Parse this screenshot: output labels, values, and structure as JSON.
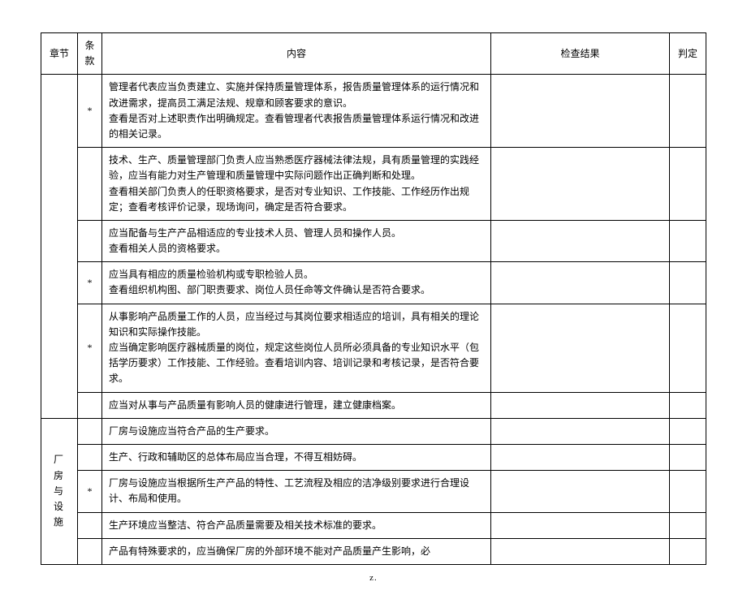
{
  "headers": {
    "chapter": "章节",
    "clause": "条款",
    "content": "内容",
    "result": "检查结果",
    "judge": "判定"
  },
  "section_label": "厂房与设施",
  "rows": [
    {
      "clause": "*",
      "content": "管理者代表应当负责建立、实施并保持质量管理体系，报告质量管理体系的运行情况和改进需求，提高员工满足法规、规章和顾客要求的意识。\n查看是否对上述职责作出明确规定。查看管理者代表报告质量管理体系运行情况和改进的相关记录。"
    },
    {
      "clause": "",
      "content": "技术、生产、质量管理部门负责人应当熟悉医疗器械法律法规，具有质量管理的实践经验，应当有能力对生产管理和质量管理中实际问题作出正确判断和处理。\n查看相关部门负责人的任职资格要求，是否对专业知识、工作技能、工作经历作出规定；查看考核评价记录，现场询问，确定是否符合要求。"
    },
    {
      "clause": "",
      "content": "应当配备与生产产品相适应的专业技术人员、管理人员和操作人员。\n查看相关人员的资格要求。"
    },
    {
      "clause": "*",
      "content": "应当具有相应的质量检验机构或专职检验人员。\n查看组织机构图、部门职责要求、岗位人员任命等文件确认是否符合要求。"
    },
    {
      "clause": "*",
      "content": "从事影响产品质量工作的人员，应当经过与其岗位要求相适应的培训，具有相关的理论知识和实际操作技能。\n应当确定影响医疗器械质量的岗位，规定这些岗位人员所必须具备的专业知识水平（包括学历要求）工作技能、工作经验。查看培训内容、培训记录和考核记录，是否符合要求。"
    },
    {
      "clause": "",
      "content": "应当对从事与产品质量有影响人员的健康进行管理，建立健康档案。"
    },
    {
      "clause": "",
      "content": "厂房与设施应当符合产品的生产要求。",
      "section": true
    },
    {
      "clause": "",
      "content": "生产、行政和辅助区的总体布局应当合理，不得互相妨碍。",
      "section": true
    },
    {
      "clause": "*",
      "content": "厂房与设施应当根据所生产产品的特性、工艺流程及相应的洁净级别要求进行合理设计、布局和使用。",
      "section": true
    },
    {
      "clause": "",
      "content": "生产环境应当整洁、符合产品质量需要及相关技术标准的要求。",
      "section": true
    },
    {
      "clause": "",
      "content": "产品有特殊要求的，应当确保厂房的外部环境不能对产品质量产生影响，必",
      "section": true
    }
  ],
  "footer": "z."
}
